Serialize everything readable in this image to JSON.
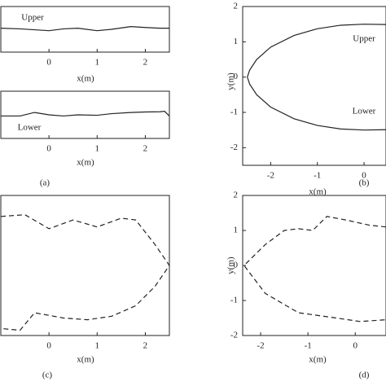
{
  "chart_data": [
    {
      "type": "line",
      "xlabel": "x(m)",
      "annotations": [
        "Upper"
      ],
      "linestyle": "solid",
      "color": "#222222",
      "xlim": [
        -1,
        2.5
      ],
      "ylim": [
        -1,
        1
      ],
      "xticks": [
        0,
        1,
        2
      ],
      "x": [
        -1,
        -0.6,
        -0.3,
        0,
        0.3,
        0.6,
        1,
        1.3,
        1.7,
        2,
        2.3,
        2.5
      ],
      "values": [
        0.05,
        0.02,
        -0.02,
        -0.06,
        0.02,
        0.05,
        -0.06,
        0.0,
        0.12,
        0.08,
        0.05,
        0.05
      ]
    },
    {
      "type": "line",
      "xlabel": "x(m)",
      "caption": "(a)",
      "annotations": [
        "Lower"
      ],
      "linestyle": "solid",
      "color": "#222222",
      "xlim": [
        -1,
        2.5
      ],
      "ylim": [
        -1,
        1
      ],
      "xticks": [
        0,
        1,
        2
      ],
      "x": [
        -1,
        -0.6,
        -0.3,
        0,
        0.3,
        0.6,
        1,
        1.3,
        1.7,
        2,
        2.3,
        2.4,
        2.5
      ],
      "values": [
        -0.05,
        -0.05,
        0.1,
        0.0,
        -0.05,
        0.0,
        -0.02,
        0.05,
        0.1,
        0.12,
        0.13,
        0.15,
        -0.05
      ]
    },
    {
      "type": "line",
      "xlabel": "x(m)",
      "ylabel": "y(m)",
      "caption": "(b)",
      "annotations": [
        "Upper",
        "Lower"
      ],
      "linestyle": "solid",
      "color": "#222222",
      "xlim": [
        -2.6,
        0.47
      ],
      "ylim": [
        -2.5,
        2
      ],
      "xticks": [
        -2,
        -1,
        0
      ],
      "yticks": [
        -2,
        -1,
        0,
        1,
        2
      ],
      "x": [
        0.47,
        0,
        -0.5,
        -1,
        -1.5,
        -2,
        -2.3,
        -2.45,
        -2.5,
        -2.45,
        -2.3,
        -2,
        -1.5,
        -1,
        -0.5,
        0,
        0.47
      ],
      "values": [
        1.49,
        1.5,
        1.47,
        1.37,
        1.18,
        0.85,
        0.5,
        0.2,
        0,
        -0.2,
        -0.5,
        -0.85,
        -1.18,
        -1.37,
        -1.47,
        -1.5,
        -1.49
      ]
    },
    {
      "type": "line",
      "xlabel": "x(m)",
      "caption": "(c)",
      "linestyle": "dashed",
      "color": "#222222",
      "xlim": [
        -1,
        2.5
      ],
      "ylim": [
        -2,
        2
      ],
      "xticks": [
        0,
        1,
        2
      ],
      "x": [
        -1,
        -0.5,
        0,
        0.5,
        1,
        1.5,
        1.8,
        2.2,
        2.5,
        2.2,
        1.8,
        1.3,
        0.8,
        0.3,
        -0.3,
        -0.6,
        -1
      ],
      "values": [
        1.4,
        1.45,
        1.05,
        1.3,
        1.1,
        1.35,
        1.3,
        0.6,
        0,
        -0.6,
        -1.15,
        -1.45,
        -1.55,
        -1.5,
        -1.35,
        -1.85,
        -1.8
      ]
    },
    {
      "type": "line",
      "xlabel": "x(m)",
      "ylabel": "y(m)",
      "caption": "(d)",
      "linestyle": "dashed",
      "color": "#222222",
      "xlim": [
        -2.38,
        0.65
      ],
      "ylim": [
        -2,
        2
      ],
      "xticks": [
        -2,
        -1,
        0
      ],
      "yticks": [
        -2,
        -1,
        0,
        1,
        2
      ],
      "x": [
        0.65,
        0.3,
        -0.2,
        -0.6,
        -0.9,
        -1.2,
        -1.5,
        -1.9,
        -2.35,
        -1.9,
        -1.2,
        -0.4,
        0.1,
        0.65
      ],
      "values": [
        1.1,
        1.15,
        1.3,
        1.4,
        1.0,
        1.05,
        1.0,
        0.6,
        0,
        -0.8,
        -1.35,
        -1.5,
        -1.6,
        -1.55
      ]
    }
  ]
}
